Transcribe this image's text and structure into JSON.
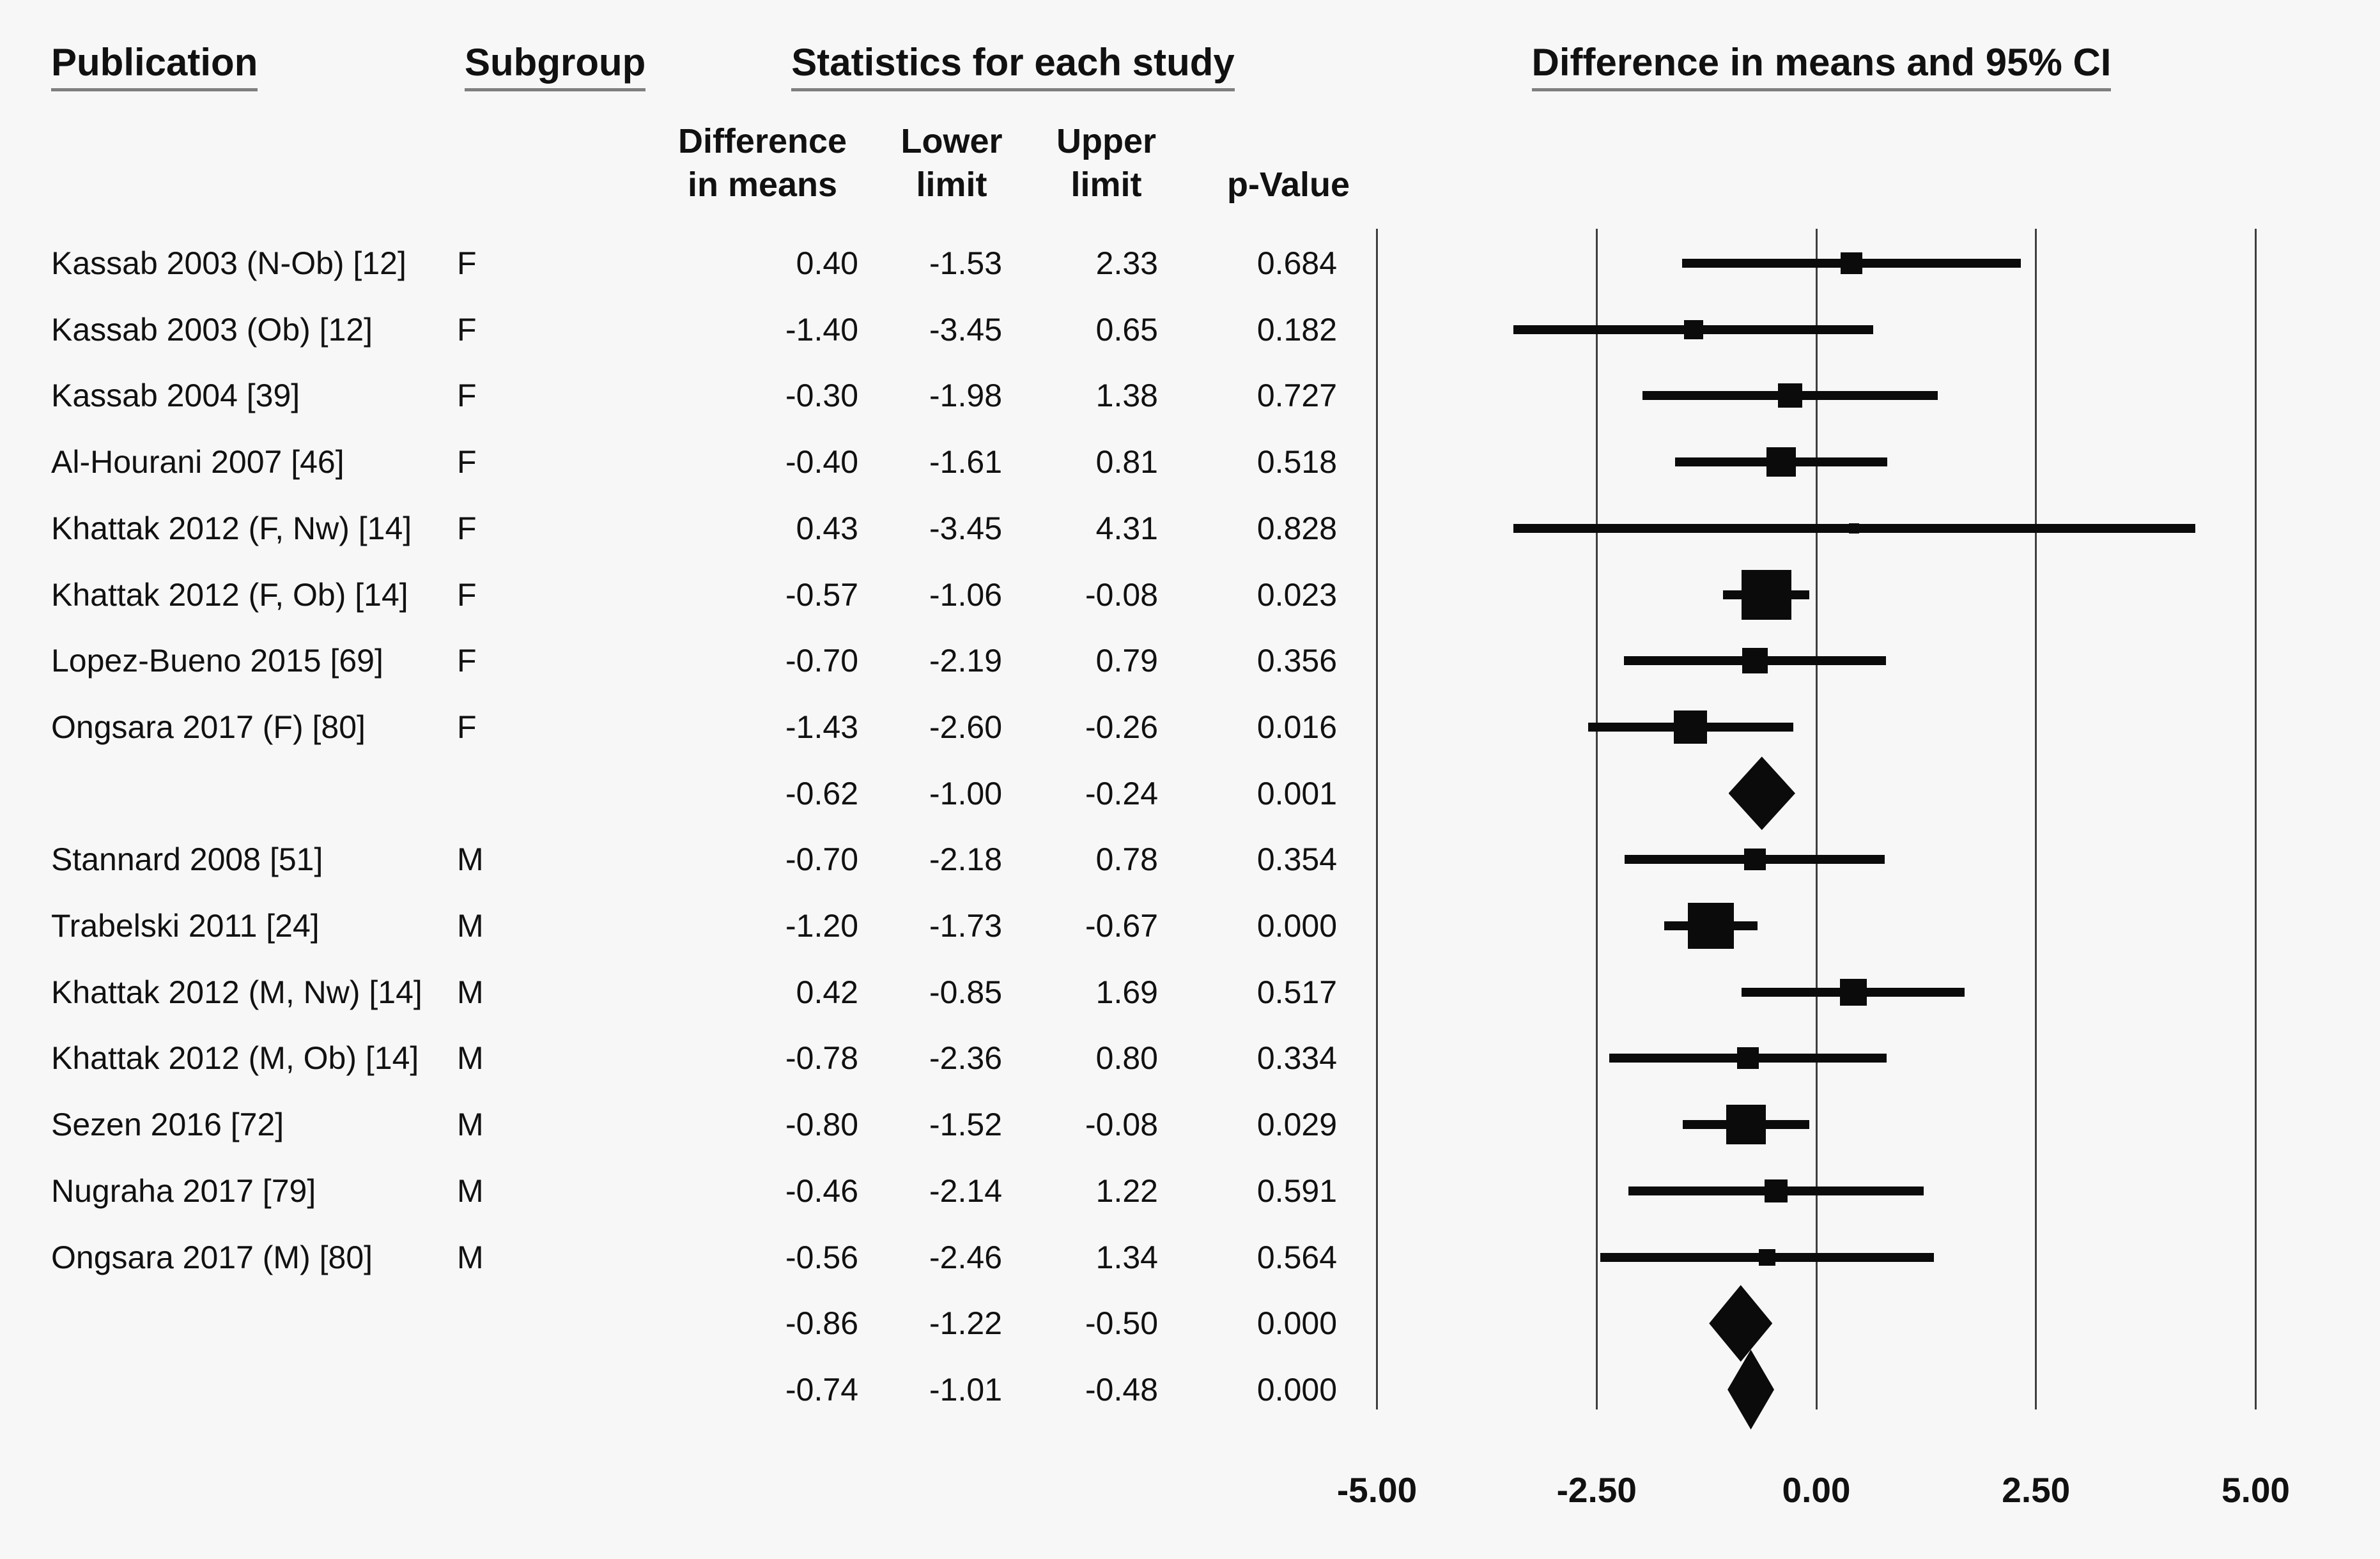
{
  "headers": {
    "publication": "Publication",
    "subgroup": "Subgroup",
    "statistics": "Statistics for each study",
    "plot": "Difference in means and 95% CI"
  },
  "stat_columns": {
    "diff_line1": "Difference",
    "diff_line2": "in means",
    "lower_line1": "Lower",
    "lower_line2": "limit",
    "upper_line1": "Upper",
    "upper_line2": "limit",
    "p": "p-Value"
  },
  "axis": {
    "tick_labels": [
      "-5.00",
      "-2.50",
      "0.00",
      "2.50",
      "5.00"
    ],
    "tick_values": [
      -5,
      -2.5,
      0,
      2.5,
      5
    ]
  },
  "colors": {
    "background": "#f7f7f7",
    "ink": "#0b0b0b",
    "underline": "#7f7f7f",
    "gridline": "#3f3f3f"
  },
  "chart_data": {
    "type": "forest",
    "title": "Difference in means and 95% CI",
    "xlabel": "",
    "xlim": [
      -5,
      5
    ],
    "x_ticks": [
      -5,
      -2.5,
      0,
      2.5,
      5
    ],
    "grid": "vertical-at-ticks",
    "rows": [
      {
        "kind": "study",
        "publication": "Kassab 2003 (N-Ob) [12]",
        "subgroup": "F",
        "diff": 0.4,
        "lower": -1.53,
        "upper": 2.33,
        "diff_label": "0.40",
        "lower_label": "-1.53",
        "upper_label": "2.33",
        "p_label": "0.684",
        "marker_px": 34
      },
      {
        "kind": "study",
        "publication": "Kassab 2003 (Ob) [12]",
        "subgroup": "F",
        "diff": -1.4,
        "lower": -3.45,
        "upper": 0.65,
        "diff_label": "-1.40",
        "lower_label": "-3.45",
        "upper_label": "0.65",
        "p_label": "0.182",
        "marker_px": 30
      },
      {
        "kind": "study",
        "publication": "Kassab 2004 [39]",
        "subgroup": "F",
        "diff": -0.3,
        "lower": -1.98,
        "upper": 1.38,
        "diff_label": "-0.30",
        "lower_label": "-1.98",
        "upper_label": "1.38",
        "p_label": "0.727",
        "marker_px": 38
      },
      {
        "kind": "study",
        "publication": "Al-Hourani 2007 [46]",
        "subgroup": "F",
        "diff": -0.4,
        "lower": -1.61,
        "upper": 0.81,
        "diff_label": "-0.40",
        "lower_label": "-1.61",
        "upper_label": "0.81",
        "p_label": "0.518",
        "marker_px": 46
      },
      {
        "kind": "study",
        "publication": "Khattak 2012 (F, Nw) [14]",
        "subgroup": "F",
        "diff": 0.43,
        "lower": -3.45,
        "upper": 4.31,
        "diff_label": "0.43",
        "lower_label": "-3.45",
        "upper_label": "4.31",
        "p_label": "0.828",
        "marker_px": 16
      },
      {
        "kind": "study",
        "publication": "Khattak 2012 (F, Ob) [14]",
        "subgroup": "F",
        "diff": -0.57,
        "lower": -1.06,
        "upper": -0.08,
        "diff_label": "-0.57",
        "lower_label": "-1.06",
        "upper_label": "-0.08",
        "p_label": "0.023",
        "marker_px": 78
      },
      {
        "kind": "study",
        "publication": "Lopez-Bueno 2015 [69]",
        "subgroup": "F",
        "diff": -0.7,
        "lower": -2.19,
        "upper": 0.79,
        "diff_label": "-0.70",
        "lower_label": "-2.19",
        "upper_label": "0.79",
        "p_label": "0.356",
        "marker_px": 40
      },
      {
        "kind": "study",
        "publication": "Ongsara 2017 (F) [80]",
        "subgroup": "F",
        "diff": -1.43,
        "lower": -2.6,
        "upper": -0.26,
        "diff_label": "-1.43",
        "lower_label": "-2.60",
        "upper_label": "-0.26",
        "p_label": "0.016",
        "marker_px": 52
      },
      {
        "kind": "subtotal",
        "publication": "",
        "subgroup": "",
        "diff": -0.62,
        "lower": -1.0,
        "upper": -0.24,
        "diff_label": "-0.62",
        "lower_label": "-1.00",
        "upper_label": "-0.24",
        "p_label": "0.001",
        "diamond_h": 115
      },
      {
        "kind": "study",
        "publication": "Stannard 2008 [51]",
        "subgroup": "M",
        "diff": -0.7,
        "lower": -2.18,
        "upper": 0.78,
        "diff_label": "-0.70",
        "lower_label": "-2.18",
        "upper_label": "0.78",
        "p_label": "0.354",
        "marker_px": 34
      },
      {
        "kind": "study",
        "publication": "Trabelski 2011 [24]",
        "subgroup": "M",
        "diff": -1.2,
        "lower": -1.73,
        "upper": -0.67,
        "diff_label": "-1.20",
        "lower_label": "-1.73",
        "upper_label": "-0.67",
        "p_label": "0.000",
        "marker_px": 72
      },
      {
        "kind": "study",
        "publication": "Khattak 2012 (M, Nw) [14]",
        "subgroup": "M",
        "diff": 0.42,
        "lower": -0.85,
        "upper": 1.69,
        "diff_label": "0.42",
        "lower_label": "-0.85",
        "upper_label": "1.69",
        "p_label": "0.517",
        "marker_px": 42
      },
      {
        "kind": "study",
        "publication": "Khattak 2012 (M, Ob) [14]",
        "subgroup": "M",
        "diff": -0.78,
        "lower": -2.36,
        "upper": 0.8,
        "diff_label": "-0.78",
        "lower_label": "-2.36",
        "upper_label": "0.80",
        "p_label": "0.334",
        "marker_px": 34
      },
      {
        "kind": "study",
        "publication": "Sezen 2016 [72]",
        "subgroup": "M",
        "diff": -0.8,
        "lower": -1.52,
        "upper": -0.08,
        "diff_label": "-0.80",
        "lower_label": "-1.52",
        "upper_label": "-0.08",
        "p_label": "0.029",
        "marker_px": 62
      },
      {
        "kind": "study",
        "publication": "Nugraha 2017 [79]",
        "subgroup": "M",
        "diff": -0.46,
        "lower": -2.14,
        "upper": 1.22,
        "diff_label": "-0.46",
        "lower_label": "-2.14",
        "upper_label": "1.22",
        "p_label": "0.591",
        "marker_px": 36
      },
      {
        "kind": "study",
        "publication": "Ongsara 2017 (M) [80]",
        "subgroup": "M",
        "diff": -0.56,
        "lower": -2.46,
        "upper": 1.34,
        "diff_label": "-0.56",
        "lower_label": "-2.46",
        "upper_label": "1.34",
        "p_label": "0.564",
        "marker_px": 26
      },
      {
        "kind": "subtotal",
        "publication": "",
        "subgroup": "",
        "diff": -0.86,
        "lower": -1.22,
        "upper": -0.5,
        "diff_label": "-0.86",
        "lower_label": "-1.22",
        "upper_label": "-0.50",
        "p_label": "0.000",
        "diamond_h": 120
      },
      {
        "kind": "overall",
        "publication": "",
        "subgroup": "",
        "diff": -0.74,
        "lower": -1.01,
        "upper": -0.48,
        "diff_label": "-0.74",
        "lower_label": "-1.01",
        "upper_label": "-0.48",
        "p_label": "0.000",
        "diamond_h": 125
      }
    ]
  }
}
